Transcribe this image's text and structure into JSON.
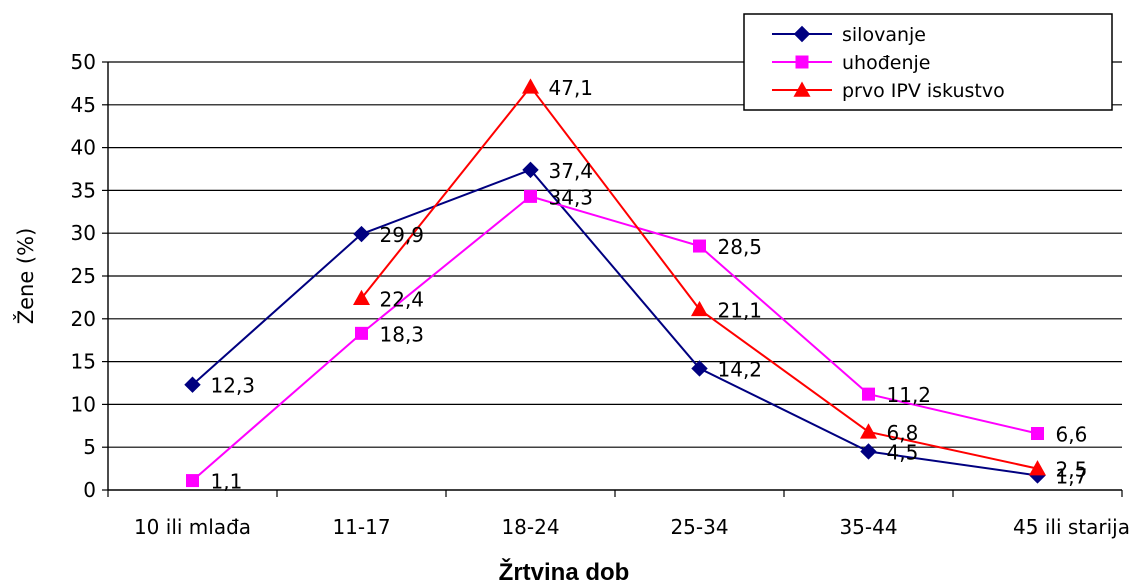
{
  "chart_data": {
    "type": "line",
    "title": "",
    "xlabel": "Žrtvina dob",
    "ylabel": "Žene (%)",
    "ylim": [
      0,
      50
    ],
    "yticks": [
      0,
      5,
      10,
      15,
      20,
      25,
      30,
      35,
      40,
      45,
      50
    ],
    "categories": [
      "10 ili mlađa",
      "11-17",
      "18-24",
      "25-34",
      "35-44",
      "45 ili starija"
    ],
    "grid": true,
    "legend_position": "top-right",
    "series": [
      {
        "name": "silovanje",
        "color": "#000080",
        "marker": "diamond",
        "values": [
          12.3,
          29.9,
          37.4,
          14.2,
          4.5,
          1.7
        ],
        "labels": [
          "12,3",
          "29,9",
          "37,4",
          "14,2",
          "4,5",
          "1,7"
        ]
      },
      {
        "name": "uhođenje",
        "color": "#FF00FF",
        "marker": "square",
        "values": [
          1.1,
          18.3,
          34.3,
          28.5,
          11.2,
          6.6
        ],
        "labels": [
          "1,1",
          "18,3",
          "34,3",
          "28,5",
          "11,2",
          "6,6"
        ]
      },
      {
        "name": "prvo IPV iskustvo",
        "color": "#FF0000",
        "marker": "triangle",
        "values": [
          null,
          22.4,
          47.1,
          21.1,
          6.8,
          2.5
        ],
        "labels": [
          "",
          "22,4",
          "47,1",
          "21,1",
          "6,8",
          "2,5"
        ]
      }
    ]
  }
}
